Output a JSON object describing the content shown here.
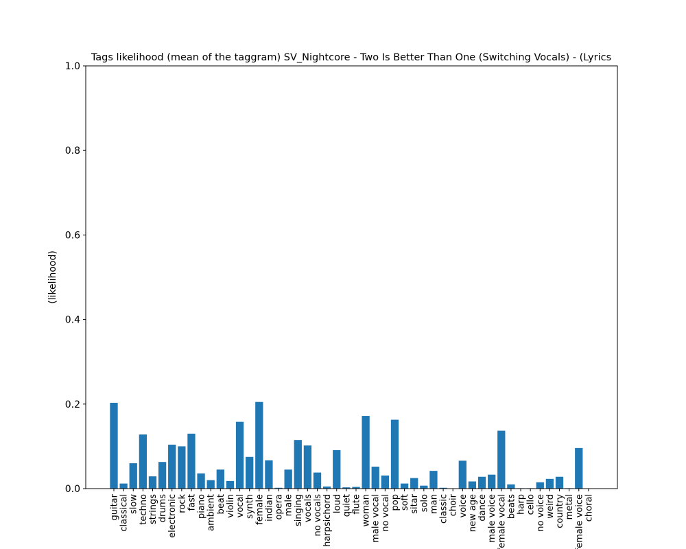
{
  "chart_data": {
    "type": "bar",
    "title": "Tags likelihood (mean of the taggram) SV_Nightcore - Two Is Better Than One (Switching Vocals) - (Lyrics",
    "xlabel": "",
    "ylabel": "(likelihood)",
    "ylim": [
      0,
      1.0
    ],
    "yticks": [
      "0.0",
      "0.2",
      "0.4",
      "0.6",
      "0.8",
      "1.0"
    ],
    "grid": false,
    "bar_color": "#1f77b4",
    "categories": [
      "guitar",
      "classical",
      "slow",
      "techno",
      "strings",
      "drums",
      "electronic",
      "rock",
      "fast",
      "piano",
      "ambient",
      "beat",
      "violin",
      "vocal",
      "synth",
      "female",
      "indian",
      "opera",
      "male",
      "singing",
      "vocals",
      "no vocals",
      "harpsichord",
      "loud",
      "quiet",
      "flute",
      "woman",
      "male vocal",
      "no vocal",
      "pop",
      "soft",
      "sitar",
      "solo",
      "man",
      "classic",
      "choir",
      "voice",
      "new age",
      "dance",
      "male voice",
      "female vocal",
      "beats",
      "harp",
      "cello",
      "no voice",
      "weird",
      "country",
      "metal",
      "female voice",
      "choral"
    ],
    "values": [
      0.203,
      0.012,
      0.06,
      0.128,
      0.029,
      0.063,
      0.104,
      0.1,
      0.13,
      0.036,
      0.02,
      0.045,
      0.018,
      0.158,
      0.075,
      0.205,
      0.067,
      0.002,
      0.045,
      0.115,
      0.102,
      0.038,
      0.005,
      0.091,
      0.003,
      0.004,
      0.172,
      0.052,
      0.031,
      0.163,
      0.012,
      0.025,
      0.007,
      0.042,
      0.002,
      0.0,
      0.066,
      0.017,
      0.028,
      0.033,
      0.137,
      0.01,
      0.001,
      0.001,
      0.015,
      0.023,
      0.028,
      0.001,
      0.096,
      0.0
    ]
  }
}
